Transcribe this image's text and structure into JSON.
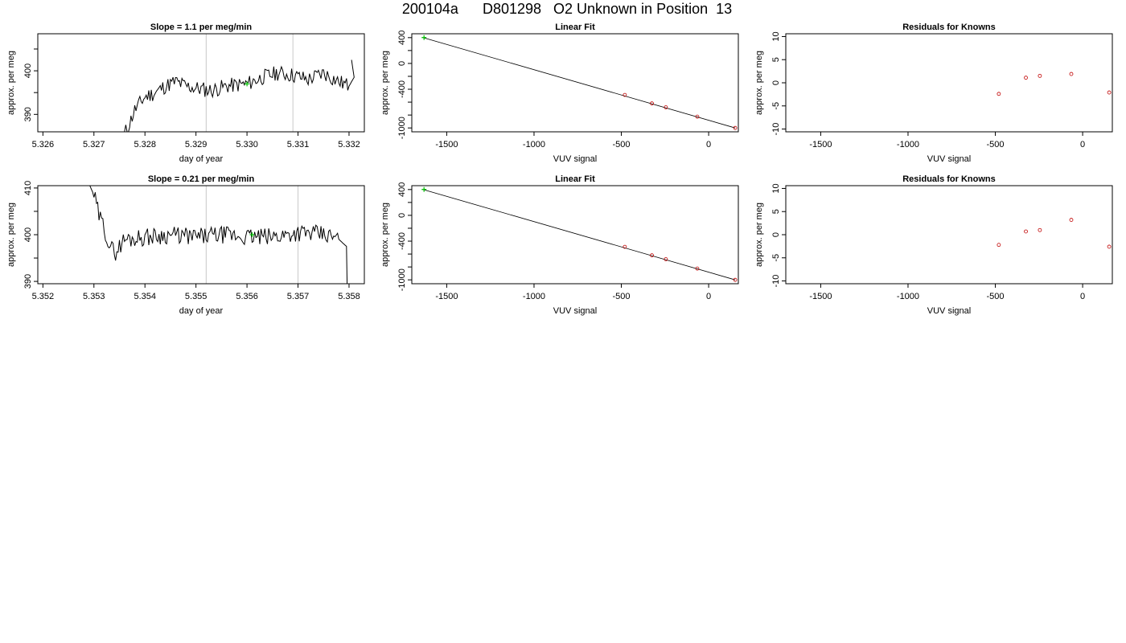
{
  "page": {
    "title": "200104a      D801298   O2 Unknown in Position  13"
  },
  "colors": {
    "trace": "#000000",
    "unknown": "#00c000",
    "known": "#c00000",
    "vline": "#c8c8c8"
  },
  "chart_data": [
    {
      "id": "ts1",
      "type": "line",
      "title": "Slope =  1.1  per meg/min",
      "xlabel": "day of year",
      "ylabel": "approx. per meg",
      "xlim": [
        5.3259,
        5.3323
      ],
      "ylim": [
        386,
        408.5
      ],
      "xticks": [
        5.326,
        5.327,
        5.328,
        5.329,
        5.33,
        5.331,
        5.332
      ],
      "xtick_labels": [
        "5.326",
        "5.327",
        "5.328",
        "5.329",
        "5.330",
        "5.331",
        "5.332"
      ],
      "yticks": [
        390,
        395,
        400,
        405
      ],
      "ytick_labels": [
        "390",
        "",
        "400",
        ""
      ],
      "vlines": [
        5.3292,
        5.3309
      ],
      "trace_anchors": [
        [
          5.3275,
          384
        ],
        [
          5.3276,
          385.5
        ],
        [
          5.3277,
          388
        ],
        [
          5.3278,
          391
        ],
        [
          5.3279,
          392.5
        ],
        [
          5.328,
          394
        ],
        [
          5.3282,
          395
        ],
        [
          5.3284,
          396.5
        ],
        [
          5.3286,
          397.5
        ],
        [
          5.3288,
          396.5
        ],
        [
          5.329,
          396
        ],
        [
          5.3293,
          395.5
        ],
        [
          5.3296,
          396.5
        ],
        [
          5.33,
          397
        ],
        [
          5.3303,
          398.5
        ],
        [
          5.3306,
          399.5
        ],
        [
          5.3309,
          399
        ],
        [
          5.3312,
          398
        ],
        [
          5.3315,
          399.5
        ],
        [
          5.3318,
          397.5
        ],
        [
          5.332,
          396.5
        ],
        [
          5.3321,
          398.5
        ],
        [
          5.33205,
          402.5
        ]
      ],
      "noise_amp": 1.8,
      "noise_seed": 11,
      "highlight": {
        "x": 5.33,
        "y": 397
      }
    },
    {
      "id": "fit1",
      "type": "scatter",
      "title": "Linear Fit",
      "xlabel": "VUV signal",
      "ylabel": "approx. per meg",
      "xlim": [
        -1700,
        170
      ],
      "ylim": [
        -1060,
        460
      ],
      "xticks": [
        -1500,
        -1000,
        -500,
        0
      ],
      "xtick_labels": [
        "-1500",
        "-1000",
        "-500",
        "0"
      ],
      "yticks": [
        -1000,
        -800,
        -600,
        -400,
        -200,
        0,
        200,
        400
      ],
      "ytick_labels": [
        "-1000",
        "",
        "",
        "-400",
        "",
        "0",
        "",
        "400"
      ],
      "line": [
        [
          -1640,
          404
        ],
        [
          152,
          -1000
        ]
      ],
      "knowns": [
        [
          -480,
          -488
        ],
        [
          -325,
          -620
        ],
        [
          -245,
          -680
        ],
        [
          -65,
          -825
        ],
        [
          152,
          -1000
        ]
      ],
      "unknowns": [
        [
          -1630,
          401
        ]
      ]
    },
    {
      "id": "res1",
      "type": "scatter",
      "title": "Residuals for Knowns",
      "xlabel": "VUV signal",
      "ylabel": "approx. per meg",
      "xlim": [
        -1700,
        170
      ],
      "ylim": [
        -10.6,
        10.6
      ],
      "xticks": [
        -1500,
        -1000,
        -500,
        0
      ],
      "xtick_labels": [
        "-1500",
        "-1000",
        "-500",
        "0"
      ],
      "yticks": [
        -10,
        -5,
        0,
        5,
        10
      ],
      "ytick_labels": [
        "-10",
        "-5",
        "0",
        "5",
        "10"
      ],
      "knowns": [
        [
          -480,
          -2.4
        ],
        [
          -325,
          1.1
        ],
        [
          -245,
          1.5
        ],
        [
          -65,
          1.9
        ],
        [
          152,
          -2.1
        ]
      ]
    },
    {
      "id": "ts2",
      "type": "line",
      "title": "Slope =  0.21  per meg/min",
      "xlabel": "day of year",
      "ylabel": "approx. per meg",
      "xlim": [
        5.3519,
        5.3583
      ],
      "ylim": [
        389.5,
        410.5
      ],
      "xticks": [
        5.352,
        5.353,
        5.354,
        5.355,
        5.356,
        5.357,
        5.358
      ],
      "xtick_labels": [
        "5.352",
        "5.353",
        "5.354",
        "5.355",
        "5.356",
        "5.357",
        "5.358"
      ],
      "yticks": [
        390,
        395,
        400,
        405,
        410
      ],
      "ytick_labels": [
        "390",
        "",
        "400",
        "",
        "410"
      ],
      "vlines": [
        5.3552,
        5.357
      ],
      "trace_anchors": [
        [
          5.3529,
          411
        ],
        [
          5.353,
          408.5
        ],
        [
          5.3531,
          404
        ],
        [
          5.3532,
          401.5
        ],
        [
          5.3533,
          398
        ],
        [
          5.3534,
          396
        ],
        [
          5.3536,
          399
        ],
        [
          5.354,
          399.5
        ],
        [
          5.3545,
          400
        ],
        [
          5.355,
          399.5
        ],
        [
          5.3555,
          400
        ],
        [
          5.356,
          399.5
        ],
        [
          5.3565,
          399.5
        ],
        [
          5.357,
          400.5
        ],
        [
          5.3575,
          400
        ],
        [
          5.3578,
          399
        ],
        [
          5.35795,
          397.5
        ],
        [
          5.35797,
          385
        ]
      ],
      "noise_amp": 1.9,
      "noise_seed": 29,
      "highlight": {
        "x": 5.3561,
        "y": 400
      }
    },
    {
      "id": "fit2",
      "type": "scatter",
      "title": "Linear Fit",
      "xlabel": "VUV signal",
      "ylabel": "approx. per meg",
      "xlim": [
        -1700,
        170
      ],
      "ylim": [
        -1060,
        460
      ],
      "xticks": [
        -1500,
        -1000,
        -500,
        0
      ],
      "xtick_labels": [
        "-1500",
        "-1000",
        "-500",
        "0"
      ],
      "yticks": [
        -1000,
        -800,
        -600,
        -400,
        -200,
        0,
        200,
        400
      ],
      "ytick_labels": [
        "-1000",
        "",
        "",
        "-400",
        "",
        "0",
        "",
        "400"
      ],
      "line": [
        [
          -1640,
          404
        ],
        [
          152,
          -1000
        ]
      ],
      "knowns": [
        [
          -480,
          -488
        ],
        [
          -325,
          -620
        ],
        [
          -245,
          -680
        ],
        [
          -65,
          -825
        ],
        [
          152,
          -1000
        ]
      ],
      "unknowns": [
        [
          -1630,
          401
        ]
      ]
    },
    {
      "id": "res2",
      "type": "scatter",
      "title": "Residuals for Knowns",
      "xlabel": "VUV signal",
      "ylabel": "approx. per meg",
      "xlim": [
        -1700,
        170
      ],
      "ylim": [
        -10.6,
        10.6
      ],
      "xticks": [
        -1500,
        -1000,
        -500,
        0
      ],
      "xtick_labels": [
        "-1500",
        "-1000",
        "-500",
        "0"
      ],
      "yticks": [
        -10,
        -5,
        0,
        5,
        10
      ],
      "ytick_labels": [
        "-10",
        "-5",
        "0",
        "5",
        "10"
      ],
      "knowns": [
        [
          -480,
          -2.2
        ],
        [
          -325,
          0.7
        ],
        [
          -245,
          1.0
        ],
        [
          -65,
          3.2
        ],
        [
          152,
          -2.6
        ]
      ]
    }
  ]
}
